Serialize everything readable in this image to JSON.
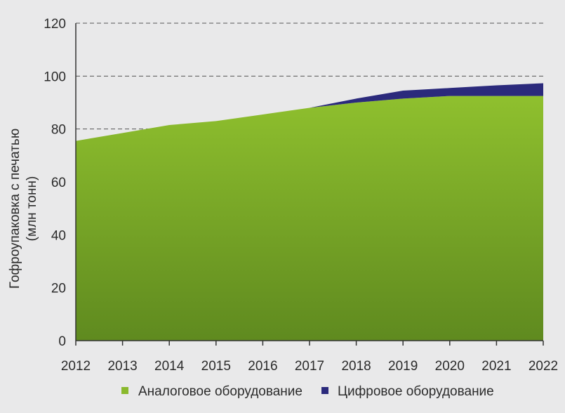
{
  "chart_data": {
    "type": "area",
    "stacked": true,
    "x": [
      2012,
      2013,
      2014,
      2015,
      2016,
      2017,
      2018,
      2019,
      2020,
      2021,
      2022
    ],
    "x_tick_labels": [
      "2012",
      "2013",
      "2014",
      "2015",
      "2016",
      "2017",
      "2018",
      "2019",
      "2020",
      "2021",
      "2022"
    ],
    "series": [
      {
        "name": "Аналоговое оборудование",
        "color": "#8ab92d",
        "values": [
          75.5,
          78.5,
          81.5,
          83.0,
          85.5,
          88.0,
          90.0,
          91.5,
          92.5,
          92.5,
          92.5
        ]
      },
      {
        "name": "Цифровое оборудование",
        "color": "#2b2a7c",
        "values": [
          0,
          0,
          0,
          0,
          0,
          0,
          1.5,
          3.0,
          3.0,
          4.0,
          4.8
        ]
      }
    ],
    "ylabel_line1": "Гофроупаковка с печатью",
    "ylabel_line2": "(млн тонн)",
    "ylim": [
      0,
      120
    ],
    "y_ticks": [
      "0",
      "20",
      "40",
      "60",
      "80",
      "100",
      "120"
    ],
    "y_tick_values": [
      0,
      20,
      40,
      60,
      80,
      100,
      120
    ],
    "grid": "horizontal-dashed",
    "legend_position": "bottom"
  }
}
